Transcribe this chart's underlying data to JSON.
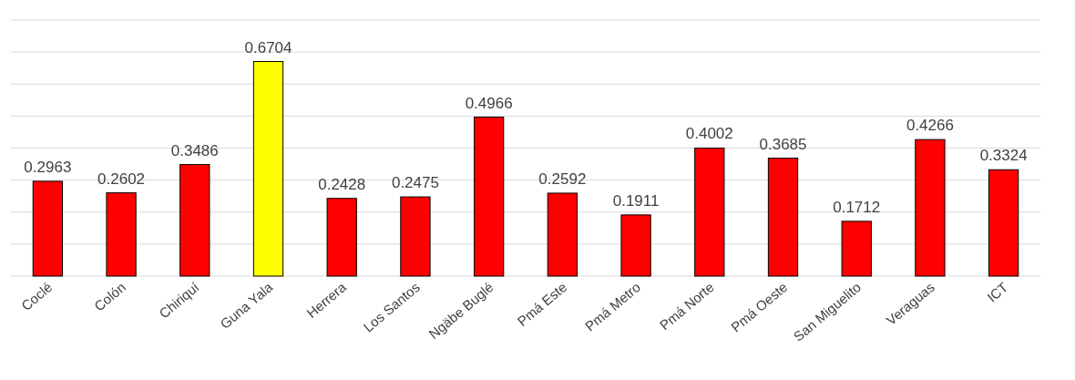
{
  "chart_data": {
    "type": "bar",
    "categories": [
      "Coclé",
      "Colón",
      "Chiriquí",
      "Guna Yala",
      "Herrera",
      "Los Santos",
      "Ngäbe Buglé",
      "Pmá Este",
      "Pmá Metro",
      "Pmá Norte",
      "Pmá Oeste",
      "San Miguelito",
      "Veraguas",
      "ICT"
    ],
    "values": [
      0.2963,
      0.2602,
      0.3486,
      0.6704,
      0.2428,
      0.2475,
      0.4966,
      0.2592,
      0.1911,
      0.4002,
      0.3685,
      0.1712,
      0.4266,
      0.3324
    ],
    "colors": [
      "#ff0000",
      "#ff0000",
      "#ff0000",
      "#ffff00",
      "#ff0000",
      "#ff0000",
      "#ff0000",
      "#ff0000",
      "#ff0000",
      "#ff0000",
      "#ff0000",
      "#ff0000",
      "#ff0000",
      "#ff0000"
    ],
    "ylim": [
      0,
      0.8
    ],
    "yticks": [
      {
        "value": 0,
        "label": null
      },
      {
        "value": 0.1,
        "label": null
      },
      {
        "value": 0.2,
        "label": null
      },
      {
        "value": 0.3,
        "label": null
      },
      {
        "value": 0.4,
        "label": null
      },
      {
        "value": 0.5,
        "label": null
      },
      {
        "value": 0.6,
        "label": null
      },
      {
        "value": 0.7,
        "label": null
      },
      {
        "value": 0.8,
        "label": null
      }
    ],
    "grid": "y",
    "data_labels": true,
    "tick_labels": "x"
  }
}
